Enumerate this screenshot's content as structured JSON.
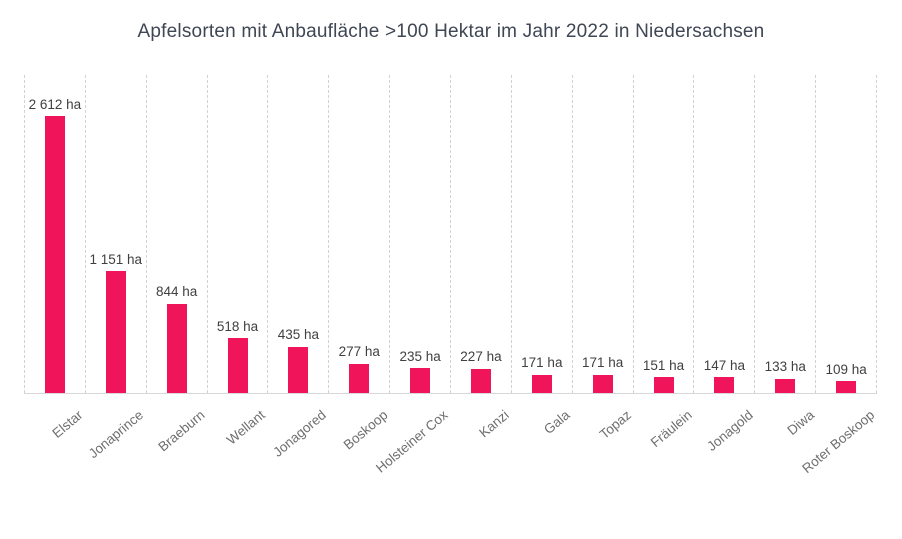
{
  "chart_data": {
    "type": "bar",
    "title": "Apfelsorten mit Anbaufläche >100 Hektar im Jahr 2022 in Niedersachsen",
    "categories": [
      "Elstar",
      "Jonaprince",
      "Braeburn",
      "Wellant",
      "Jonagored",
      "Boskoop",
      "Holsteiner Cox",
      "Kanzi",
      "Gala",
      "Topaz",
      "Fräulein",
      "Jonagold",
      "Diwa",
      "Roter Boskoop"
    ],
    "values": [
      2612,
      1151,
      844,
      518,
      435,
      277,
      235,
      227,
      171,
      171,
      151,
      147,
      133,
      109
    ],
    "value_labels": [
      "2 612 ha",
      "1 151 ha",
      "844 ha",
      "518 ha",
      "435 ha",
      "277 ha",
      "235 ha",
      "227 ha",
      "171 ha",
      "171 ha",
      "151 ha",
      "147 ha",
      "133 ha",
      "109 ha"
    ],
    "unit": "ha",
    "xlabel": "",
    "ylabel": "",
    "ylim": [
      0,
      3000
    ],
    "grid": "vertical-dashed",
    "legend_position": "none",
    "bar_color": "#f0155b"
  },
  "colors": {
    "bar": "#f0155b",
    "title_text": "#3f4654",
    "value_label_text": "#404040",
    "axis_label_text": "#6e6e6e",
    "gridline": "#d2d2d2",
    "baseline": "#d8d8d8",
    "background": "#ffffff"
  }
}
